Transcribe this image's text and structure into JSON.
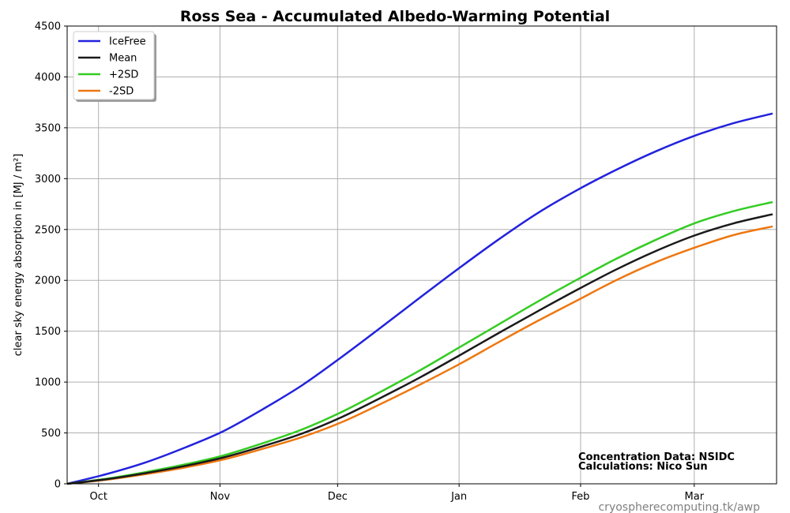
{
  "chart_data": {
    "type": "line",
    "title": "Ross Sea - Accumulated Albedo-Warming Potential",
    "ylabel": "clear sky energy absorption in  [MJ / m²]",
    "xlabel": "",
    "x_tick_labels": [
      "Oct",
      "Nov",
      "Dec",
      "Jan",
      "Feb",
      "Mar"
    ],
    "x_tick_days": [
      8,
      39,
      69,
      100,
      131,
      160
    ],
    "xlim": [
      0,
      181
    ],
    "ylim": [
      0,
      4500
    ],
    "y_ticks": [
      0,
      500,
      1000,
      1500,
      2000,
      2500,
      3000,
      3500,
      4000,
      4500
    ],
    "grid": true,
    "legend_position": "top-left",
    "x": [
      0,
      10,
      20,
      30,
      40,
      50,
      60,
      70,
      80,
      90,
      100,
      110,
      120,
      130,
      140,
      150,
      160,
      170,
      180
    ],
    "series": [
      {
        "name": "IceFree",
        "color": "#2222dd",
        "values": [
          0,
          95,
          210,
          355,
          520,
          735,
          970,
          1245,
          1535,
          1830,
          2120,
          2400,
          2660,
          2885,
          3085,
          3265,
          3420,
          3545,
          3640
        ]
      },
      {
        "name": "Mean",
        "color": "#1a1a1a",
        "values": [
          0,
          45,
          105,
          175,
          260,
          370,
          495,
          655,
          845,
          1045,
          1260,
          1480,
          1695,
          1905,
          2105,
          2285,
          2440,
          2560,
          2650
        ]
      },
      {
        "name": "+2SD",
        "color": "#33cc22",
        "values": [
          0,
          50,
          115,
          190,
          280,
          400,
          535,
          705,
          905,
          1115,
          1340,
          1565,
          1790,
          2005,
          2210,
          2395,
          2560,
          2680,
          2770
        ]
      },
      {
        "name": "-2SD",
        "color": "#ee7711",
        "values": [
          0,
          40,
          95,
          160,
          240,
          345,
          460,
          605,
          785,
          975,
          1175,
          1390,
          1600,
          1800,
          2000,
          2175,
          2320,
          2445,
          2530
        ]
      }
    ]
  },
  "credits": {
    "line1": "Concentration Data: NSIDC",
    "line2": "Calculations: Nico Sun"
  },
  "url": "cryospherecomputing.tk/awp"
}
